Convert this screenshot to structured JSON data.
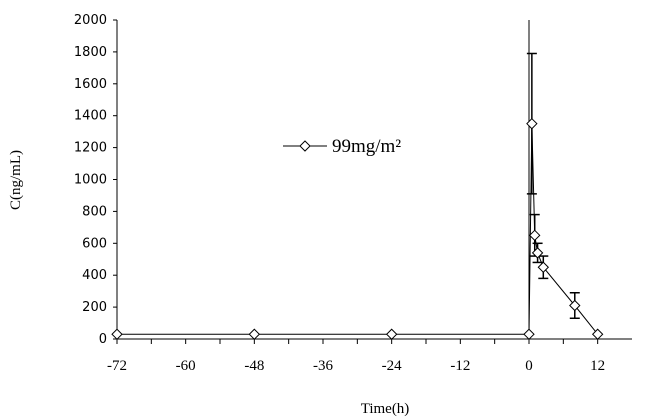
{
  "chart_data": {
    "type": "line",
    "xlabel": "Time(h)",
    "ylabel": "C(ng/mL)",
    "xlim": [
      -72,
      18
    ],
    "ylim": [
      0,
      2000
    ],
    "x_ticks": [
      -72,
      -60,
      -48,
      -36,
      -24,
      -12,
      0,
      12
    ],
    "y_ticks": [
      0,
      200,
      400,
      600,
      800,
      1000,
      1200,
      1400,
      1600,
      1800,
      2000
    ],
    "grid": false,
    "legend_position": "center-right",
    "series": [
      {
        "name": "99mg/m²",
        "color": "#000000",
        "marker": "open-diamond",
        "x": [
          -72,
          -48,
          -24,
          0,
          0.5,
          1,
          1.5,
          2.5,
          8,
          12
        ],
        "y": [
          30,
          30,
          30,
          30,
          1350,
          650,
          540,
          450,
          210,
          30
        ],
        "error": [
          0,
          0,
          0,
          0,
          440,
          130,
          60,
          70,
          80,
          0
        ]
      }
    ]
  }
}
